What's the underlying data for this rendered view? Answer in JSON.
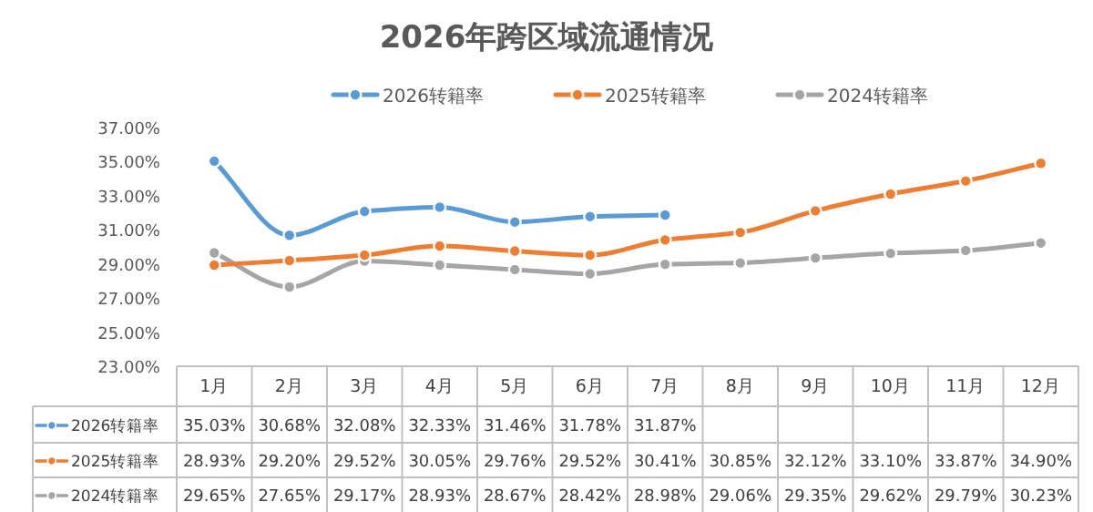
{
  "chart_data": {
    "type": "line",
    "title": "2026年跨区域流通情况",
    "categories": [
      "1月",
      "2月",
      "3月",
      "4月",
      "5月",
      "6月",
      "7月",
      "8月",
      "9月",
      "10月",
      "11月",
      "12月"
    ],
    "series": [
      {
        "name": "2026转籍率",
        "color": "#5b9bd5",
        "values": [
          35.03,
          30.68,
          32.08,
          32.33,
          31.46,
          31.78,
          31.87,
          null,
          null,
          null,
          null,
          null
        ],
        "value_labels": [
          "35.03%",
          "30.68%",
          "32.08%",
          "32.33%",
          "31.46%",
          "31.78%",
          "31.87%",
          null,
          null,
          null,
          null,
          null
        ]
      },
      {
        "name": "2025转籍率",
        "color": "#ed7d31",
        "values": [
          28.93,
          29.2,
          29.52,
          30.05,
          29.76,
          29.52,
          30.41,
          30.85,
          32.12,
          33.1,
          33.87,
          34.9
        ],
        "value_labels": [
          "28.93%",
          "29.20%",
          "29.52%",
          "30.05%",
          "29.76%",
          "29.52%",
          "30.41%",
          "30.85%",
          "32.12%",
          "33.10%",
          "33.87%",
          "34.90%"
        ]
      },
      {
        "name": "2024转籍率",
        "color": "#a5a5a5",
        "values": [
          29.65,
          27.65,
          29.17,
          28.93,
          28.67,
          28.42,
          28.98,
          29.06,
          29.35,
          29.62,
          29.79,
          30.23
        ],
        "value_labels": [
          "29.65%",
          "27.65%",
          "29.17%",
          "28.93%",
          "28.67%",
          "28.42%",
          "28.98%",
          "29.06%",
          "29.35%",
          "29.62%",
          "29.79%",
          "30.23%"
        ]
      }
    ],
    "ylim": [
      23,
      37
    ],
    "yticks": [
      {
        "value": 23,
        "label": "23.00%"
      },
      {
        "value": 25,
        "label": "25.00%"
      },
      {
        "value": 27,
        "label": "27.00%"
      },
      {
        "value": 29,
        "label": "29.00%"
      },
      {
        "value": 31,
        "label": "31.00%"
      },
      {
        "value": 33,
        "label": "33.00%"
      },
      {
        "value": 35,
        "label": "35.00%"
      },
      {
        "value": 37,
        "label": "37.00%"
      }
    ],
    "legend": "top",
    "marker": "circle",
    "grid": false
  }
}
